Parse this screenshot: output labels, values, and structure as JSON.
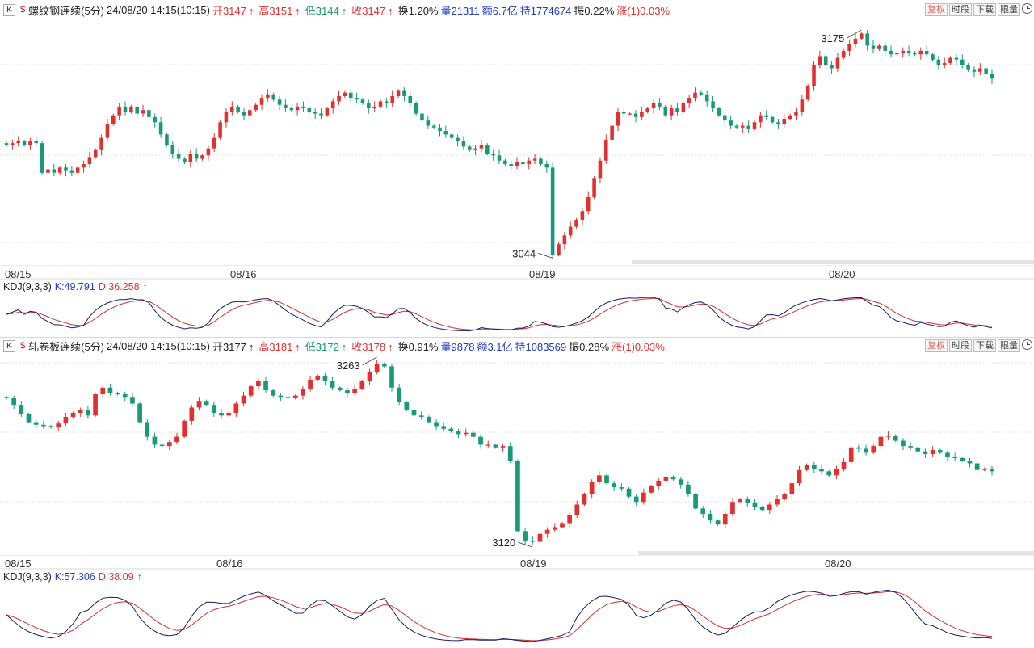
{
  "panels": [
    {
      "header": {
        "k_label": "K",
        "symbol_label": "螺纹钢连续(5分)",
        "datetime": "24/08/20 14:15(10:15)",
        "open": "开3147",
        "high": "高3151",
        "low": "低3144",
        "close": "收3147",
        "turnover": "换1.20%",
        "volume": "量21311",
        "amount": "额6.7亿",
        "hold": "持1774674",
        "amplitude": "振0.22%",
        "change": "涨(1)0.03%",
        "arrow": "↑"
      },
      "kdj": {
        "label": "KDJ(9,3,3)",
        "k": "K:49.791",
        "d": "D:36.258",
        "arrow": "↑"
      },
      "date_labels": [
        "08/15",
        "08/16",
        "08/19",
        "08/20"
      ],
      "chart_data": {
        "type": "candlestick",
        "symbol": "螺纹钢连续",
        "interval": "5分",
        "ylim": [
          3040,
          3182
        ],
        "annotations": [
          {
            "label": "3175",
            "value": 3175
          },
          {
            "label": "3044",
            "value": 3044
          }
        ],
        "close": [
          3109,
          3110,
          3111,
          3109,
          3111,
          3110,
          3093,
          3095,
          3093,
          3096,
          3094,
          3093,
          3096,
          3098,
          3102,
          3106,
          3113,
          3121,
          3126,
          3131,
          3128,
          3131,
          3127,
          3129,
          3125,
          3122,
          3115,
          3109,
          3104,
          3101,
          3099,
          3104,
          3101,
          3103,
          3107,
          3113,
          3122,
          3128,
          3131,
          3128,
          3126,
          3129,
          3132,
          3136,
          3138,
          3135,
          3132,
          3130,
          3129,
          3131,
          3130,
          3128,
          3127,
          3126,
          3130,
          3134,
          3137,
          3139,
          3136,
          3135,
          3133,
          3130,
          3131,
          3134,
          3133,
          3137,
          3140,
          3137,
          3133,
          3127,
          3123,
          3120,
          3119,
          3117,
          3115,
          3113,
          3111,
          3108,
          3106,
          3107,
          3109,
          3104,
          3103,
          3100,
          3098,
          3097,
          3099,
          3098,
          3100,
          3101,
          3098,
          3096,
          3046,
          3052,
          3057,
          3062,
          3066,
          3071,
          3079,
          3090,
          3100,
          3112,
          3120,
          3128,
          3127,
          3127,
          3125,
          3128,
          3130,
          3133,
          3131,
          3126,
          3130,
          3128,
          3133,
          3136,
          3139,
          3138,
          3134,
          3130,
          3126,
          3123,
          3120,
          3119,
          3120,
          3118,
          3122,
          3126,
          3125,
          3122,
          3121,
          3124,
          3126,
          3128,
          3135,
          3143,
          3155,
          3160,
          3155,
          3153,
          3159,
          3163,
          3167,
          3170,
          3173,
          3166,
          3164,
          3166,
          3163,
          3161,
          3162,
          3163,
          3162,
          3161,
          3163,
          3161,
          3158,
          3155,
          3156,
          3159,
          3158,
          3155,
          3152,
          3151,
          3153,
          3150,
          3147
        ]
      }
    },
    {
      "header": {
        "k_label": "K",
        "symbol_label": "轧卷板连续(5分)",
        "datetime": "24/08/20 14:15(10:15)",
        "open": "开3177",
        "high": "高3181",
        "low": "低3172",
        "close": "收3178",
        "turnover": "换0.91%",
        "volume": "量9878",
        "amount": "额3.1亿",
        "hold": "持1083569",
        "amplitude": "振0.28%",
        "change": "涨(1)0.03%",
        "arrow": "↑"
      },
      "kdj": {
        "label": "KDJ(9,3,3)",
        "k": "K:57.306",
        "d": "D:38.09",
        "arrow": "↑"
      },
      "date_labels": [
        "08/15",
        "08/16",
        "08/19",
        "08/20"
      ],
      "chart_data": {
        "type": "candlestick",
        "symbol": "轧卷板连续",
        "interval": "5分",
        "ylim": [
          3114,
          3266
        ],
        "annotations": [
          {
            "label": "3263",
            "value": 3263
          },
          {
            "label": "3120",
            "value": 3120
          }
        ],
        "close": [
          3232,
          3227,
          3220,
          3214,
          3212,
          3211,
          3210,
          3213,
          3218,
          3221,
          3223,
          3219,
          3235,
          3240,
          3236,
          3235,
          3233,
          3228,
          3214,
          3203,
          3197,
          3196,
          3199,
          3203,
          3215,
          3225,
          3230,
          3227,
          3221,
          3219,
          3221,
          3228,
          3234,
          3241,
          3245,
          3238,
          3234,
          3233,
          3232,
          3234,
          3239,
          3246,
          3249,
          3245,
          3240,
          3238,
          3236,
          3239,
          3245,
          3252,
          3258,
          3256,
          3240,
          3229,
          3223,
          3219,
          3218,
          3214,
          3211,
          3209,
          3207,
          3205,
          3206,
          3203,
          3197,
          3197,
          3195,
          3196,
          3185,
          3132,
          3125,
          3124,
          3130,
          3133,
          3135,
          3138,
          3144,
          3152,
          3160,
          3169,
          3174,
          3168,
          3165,
          3164,
          3158,
          3154,
          3161,
          3166,
          3170,
          3173,
          3171,
          3167,
          3160,
          3149,
          3145,
          3140,
          3137,
          3145,
          3154,
          3156,
          3153,
          3150,
          3148,
          3152,
          3156,
          3160,
          3168,
          3178,
          3182,
          3179,
          3177,
          3174,
          3179,
          3184,
          3195,
          3194,
          3191,
          3196,
          3203,
          3204,
          3200,
          3196,
          3195,
          3192,
          3190,
          3193,
          3191,
          3188,
          3187,
          3185,
          3183,
          3178,
          3179,
          3177
        ]
      }
    }
  ]
}
